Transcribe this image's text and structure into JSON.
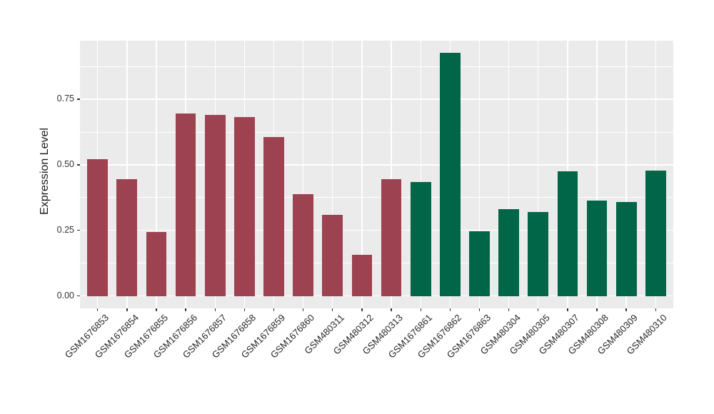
{
  "figure": {
    "background": "#FFFFFF"
  },
  "chart_data": {
    "type": "bar",
    "title": "",
    "xlabel": "",
    "ylabel": "Expression Level",
    "categories": [
      "GSM1676853",
      "GSM1676854",
      "GSM1676855",
      "GSM1676856",
      "GSM1676857",
      "GSM1676858",
      "GSM1676859",
      "GSM1676860",
      "GSM480311",
      "GSM480312",
      "GSM480313",
      "GSM1676861",
      "GSM1676862",
      "GSM1676863",
      "GSM480304",
      "GSM480305",
      "GSM480307",
      "GSM480308",
      "GSM480309",
      "GSM480310"
    ],
    "values": [
      0.521,
      0.446,
      0.245,
      0.696,
      0.69,
      0.681,
      0.606,
      0.388,
      0.308,
      0.158,
      0.444,
      0.435,
      0.926,
      0.246,
      0.331,
      0.319,
      0.476,
      0.365,
      0.358,
      0.478
    ],
    "groups": [
      "maroon",
      "maroon",
      "maroon",
      "maroon",
      "maroon",
      "maroon",
      "maroon",
      "maroon",
      "maroon",
      "maroon",
      "maroon",
      "green",
      "green",
      "green",
      "green",
      "green",
      "green",
      "green",
      "green",
      "green"
    ],
    "group_colors": {
      "maroon": "#9C4251",
      "green": "#006647"
    },
    "y_ticks": [
      0,
      0.25,
      0.5,
      0.75
    ],
    "y_tick_labels": [
      "0.00",
      "0.25",
      "0.50",
      "0.75"
    ],
    "y_minor_ticks": [
      0.125,
      0.375,
      0.625,
      0.875
    ],
    "ylim": [
      -0.047,
      0.973
    ],
    "x_tick_angle": -45,
    "legend": "none",
    "grid": true,
    "panel_bg": "#EBEBEB",
    "grid_color": "#FFFFFF",
    "axis_text_color": "#333333",
    "axis_title_color": "#1A1A1A",
    "tick_mark_color": "#333333"
  }
}
